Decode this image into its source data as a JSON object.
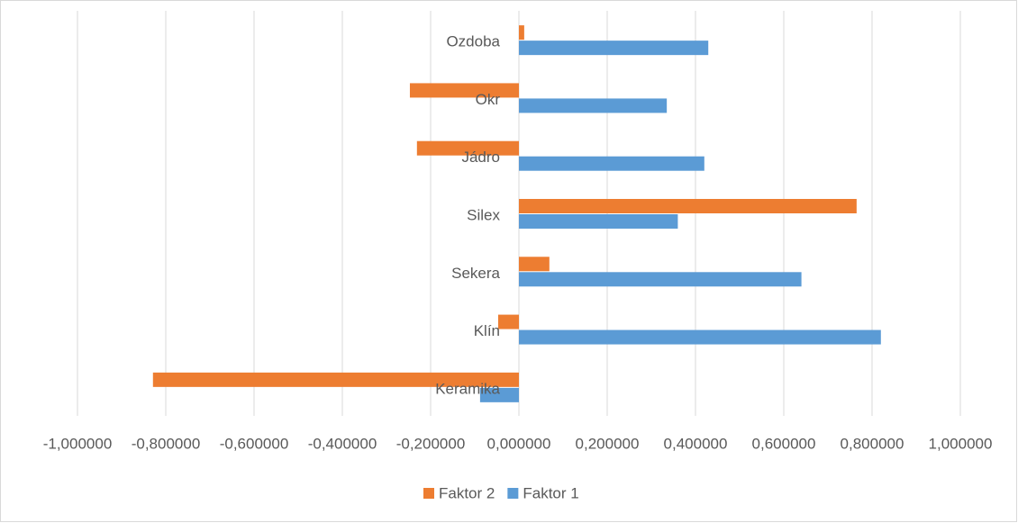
{
  "chart_data": {
    "type": "hbar",
    "categories": [
      "Ozdoba",
      "Okr",
      "Jádro",
      "Silex",
      "Sekera",
      "Klín",
      "Keramika"
    ],
    "series": [
      {
        "name": "Faktor 2",
        "color": "#ed7d31",
        "values": [
          0.012,
          -0.247,
          -0.231,
          0.765,
          0.069,
          -0.047,
          -0.829
        ]
      },
      {
        "name": "Faktor 1",
        "color": "#5b9bd5",
        "values": [
          0.429,
          0.335,
          0.42,
          0.36,
          0.64,
          0.82,
          -0.088
        ]
      }
    ],
    "xlim": [
      -1,
      1
    ],
    "xticks": [
      {
        "value": -1,
        "label": "-1,000000"
      },
      {
        "value": -0.8,
        "label": "-0,800000"
      },
      {
        "value": -0.6,
        "label": "-0,600000"
      },
      {
        "value": -0.4,
        "label": "-0,400000"
      },
      {
        "value": -0.2,
        "label": "-0,200000"
      },
      {
        "value": 0,
        "label": "0,000000"
      },
      {
        "value": 0.2,
        "label": "0,200000"
      },
      {
        "value": 0.4,
        "label": "0,400000"
      },
      {
        "value": 0.6,
        "label": "0,600000"
      },
      {
        "value": 0.8,
        "label": "0,800000"
      },
      {
        "value": 1,
        "label": "1,000000"
      }
    ],
    "grid": true,
    "legend": "bottom"
  }
}
